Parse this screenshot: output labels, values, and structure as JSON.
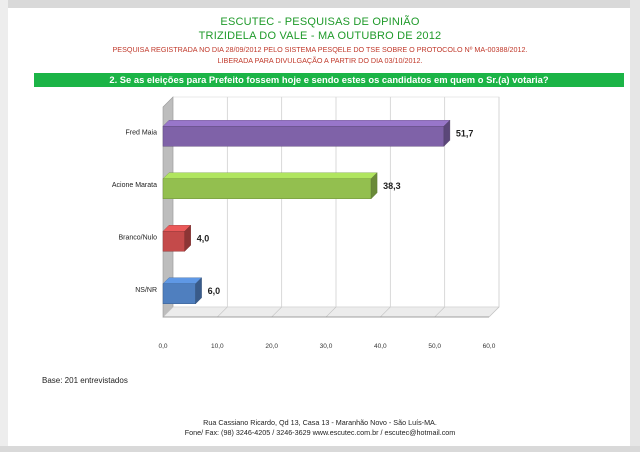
{
  "header": {
    "org": "ESCUTEC - PESQUISAS DE OPINIÃO",
    "place": "TRIZIDELA DO VALE - MA OUTUBRO DE 2012",
    "registration": "PESQUISA REGISTRADA NO DIA 28/09/2012 PELO SISTEMA PESQELE DO TSE SOBRE O PROTOCOLO Nº MA-00388/2012.",
    "release": "LIBERADA PARA DIVULGAÇÃO A PARTIR DO DIA 03/10/2012."
  },
  "question": "2. Se as eleições para Prefeito fossem hoje e sendo estes os candidatos em quem o Sr.(a) votaria?",
  "chart_data": {
    "type": "bar",
    "orientation": "horizontal",
    "categories": [
      "Fred Maia",
      "Acione Marata",
      "Branco/Nulo",
      "NS/NR"
    ],
    "values": [
      51.7,
      38.3,
      4.0,
      6.0
    ],
    "value_labels": [
      "51,7",
      "38,3",
      "4,0",
      "6,0"
    ],
    "colors": [
      "#7f62a8",
      "#93bf4f",
      "#c44a4a",
      "#4f7fbf"
    ],
    "x_ticks": [
      "0,0",
      "10,0",
      "20,0",
      "30,0",
      "40,0",
      "50,0",
      "60,0"
    ],
    "xlim": [
      0,
      60
    ],
    "grid": true,
    "title": "",
    "xlabel": "",
    "ylabel": ""
  },
  "base_note": "Base: 201 entrevistados",
  "footer": {
    "address": "Rua Cassiano Ricardo, Qd 13, Casa 13 - Maranhão Novo - São Luís-MA.",
    "contact": "Fone/ Fax: (98) 3246-4205 / 3246-3629 www.escutec.com.br / escutec@hotmail.com"
  }
}
